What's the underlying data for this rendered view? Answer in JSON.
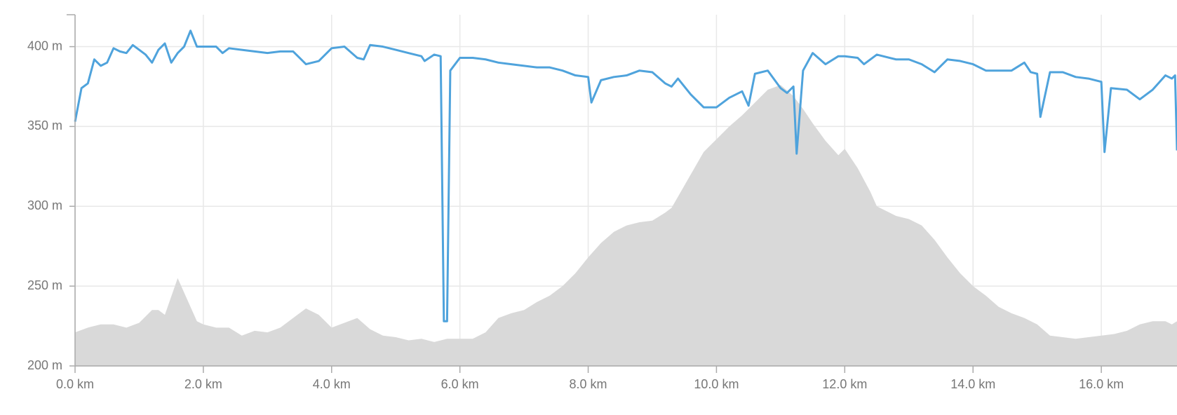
{
  "chart_data": {
    "type": "line",
    "xlim": [
      0,
      17.18
    ],
    "ylim": [
      200,
      420
    ],
    "grid": true,
    "xticks": [
      {
        "value": 0,
        "label": "0.0 km"
      },
      {
        "value": 2,
        "label": "2.0 km"
      },
      {
        "value": 4,
        "label": "4.0 km"
      },
      {
        "value": 6,
        "label": "6.0 km"
      },
      {
        "value": 8,
        "label": "8.0 km"
      },
      {
        "value": 10,
        "label": "10.0 km"
      },
      {
        "value": 12,
        "label": "12.0 km"
      },
      {
        "value": 14,
        "label": "14.0 km"
      },
      {
        "value": 16,
        "label": "16.0 km"
      }
    ],
    "yticks": [
      {
        "value": 200,
        "label": "200 m"
      },
      {
        "value": 250,
        "label": "250 m"
      },
      {
        "value": 300,
        "label": "300 m"
      },
      {
        "value": 350,
        "label": "350 m"
      },
      {
        "value": 400,
        "label": "400 m"
      }
    ],
    "series": [
      {
        "color": "#d9d9d9",
        "area": true,
        "x": [
          0,
          0.2,
          0.4,
          0.6,
          0.8,
          1.0,
          1.2,
          1.3,
          1.4,
          1.6,
          1.7,
          1.9,
          2.0,
          2.2,
          2.4,
          2.6,
          2.8,
          3.0,
          3.2,
          3.4,
          3.6,
          3.8,
          4.0,
          4.2,
          4.4,
          4.6,
          4.8,
          5.0,
          5.2,
          5.4,
          5.6,
          5.8,
          6.0,
          6.2,
          6.4,
          6.6,
          6.8,
          7.0,
          7.2,
          7.4,
          7.6,
          7.8,
          8.0,
          8.2,
          8.4,
          8.6,
          8.8,
          9.0,
          9.2,
          9.3,
          9.4,
          9.6,
          9.8,
          10.0,
          10.2,
          10.4,
          10.6,
          10.8,
          11.0,
          11.2,
          11.35,
          11.5,
          11.7,
          11.9,
          12.0,
          12.2,
          12.4,
          12.5,
          12.8,
          13.0,
          13.2,
          13.4,
          13.6,
          13.8,
          14.0,
          14.2,
          14.4,
          14.6,
          14.8,
          15.0,
          15.2,
          15.4,
          15.6,
          15.8,
          16.0,
          16.2,
          16.4,
          16.6,
          16.8,
          17.0,
          17.1,
          17.18
        ],
        "values": [
          221,
          224,
          226,
          226,
          224,
          227,
          235,
          235,
          232,
          255,
          246,
          228,
          226,
          224,
          224,
          219,
          222,
          221,
          224,
          230,
          236,
          232,
          224,
          227,
          230,
          223,
          219,
          218,
          216,
          217,
          215,
          217,
          217,
          217,
          221,
          230,
          233,
          235,
          240,
          244,
          250,
          258,
          268,
          277,
          284,
          288,
          290,
          291,
          296,
          299,
          306,
          320,
          334,
          342,
          350,
          357,
          365,
          373,
          376,
          369,
          361,
          352,
          341,
          332,
          336,
          324,
          309,
          300,
          294,
          292,
          288,
          279,
          268,
          258,
          250,
          244,
          237,
          233,
          230,
          226,
          219,
          218,
          217,
          218,
          219,
          220,
          222,
          226,
          228,
          228,
          226,
          228
        ]
      },
      {
        "color": "#4fa3dc",
        "x": [
          0,
          0.1,
          0.2,
          0.3,
          0.4,
          0.5,
          0.6,
          0.7,
          0.8,
          0.9,
          1.0,
          1.1,
          1.2,
          1.3,
          1.4,
          1.5,
          1.6,
          1.7,
          1.8,
          1.9,
          2.0,
          2.2,
          2.3,
          2.4,
          2.6,
          2.8,
          3.0,
          3.2,
          3.4,
          3.5,
          3.6,
          3.8,
          4.0,
          4.2,
          4.4,
          4.5,
          4.6,
          4.8,
          5.0,
          5.2,
          5.4,
          5.45,
          5.6,
          5.7,
          5.75,
          5.8,
          5.85,
          6.0,
          6.2,
          6.4,
          6.6,
          6.8,
          7.0,
          7.2,
          7.4,
          7.6,
          7.8,
          8.0,
          8.05,
          8.2,
          8.4,
          8.6,
          8.8,
          9.0,
          9.2,
          9.3,
          9.4,
          9.6,
          9.8,
          10.0,
          10.2,
          10.4,
          10.5,
          10.6,
          10.8,
          11.0,
          11.1,
          11.2,
          11.25,
          11.35,
          11.5,
          11.7,
          11.9,
          12.0,
          12.2,
          12.3,
          12.5,
          12.8,
          13.0,
          13.2,
          13.4,
          13.6,
          13.8,
          14.0,
          14.2,
          14.4,
          14.6,
          14.8,
          14.9,
          15.0,
          15.05,
          15.2,
          15.4,
          15.6,
          15.8,
          16.0,
          16.05,
          16.15,
          16.4,
          16.6,
          16.8,
          17.0,
          17.1,
          17.15,
          17.18
        ],
        "values": [
          353,
          374,
          377,
          392,
          388,
          390,
          399,
          397,
          396,
          401,
          398,
          395,
          390,
          398,
          402,
          390,
          396,
          400,
          410,
          400,
          400,
          400,
          396,
          399,
          398,
          397,
          396,
          397,
          397,
          393,
          389,
          391,
          399,
          400,
          393,
          392,
          401,
          400,
          398,
          396,
          394,
          391,
          395,
          394,
          228,
          228,
          385,
          393,
          393,
          392,
          390,
          389,
          388,
          387,
          387,
          385,
          382,
          381,
          365,
          379,
          381,
          382,
          385,
          384,
          377,
          375,
          380,
          370,
          362,
          362,
          368,
          372,
          363,
          383,
          385,
          374,
          371,
          375,
          333,
          385,
          396,
          389,
          394,
          394,
          393,
          389,
          395,
          392,
          392,
          389,
          384,
          392,
          391,
          389,
          385,
          385,
          385,
          390,
          384,
          383,
          356,
          384,
          384,
          381,
          380,
          378,
          334,
          374,
          373,
          367,
          373,
          382,
          380,
          382,
          335
        ]
      }
    ]
  }
}
